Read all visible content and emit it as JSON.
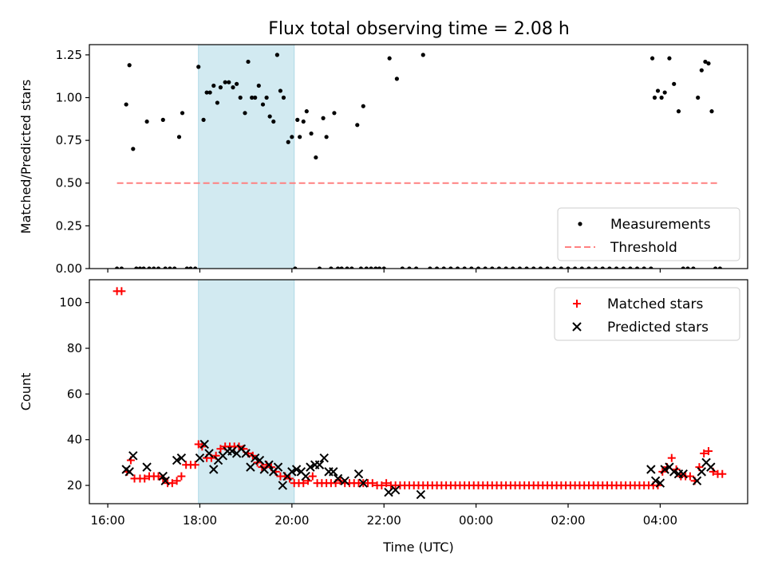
{
  "title": "Flux total observing time = 2.08 h",
  "colors": {
    "measurements": "#000000",
    "threshold": "#ff8080",
    "matched": "#ff0000",
    "predicted": "#000000",
    "shade": "#add8e6"
  },
  "chart_data": [
    {
      "type": "scatter",
      "panel": "top",
      "xlabel": "",
      "ylabel": "Matched/Predicted stars",
      "xlim": [
        15.6,
        29.9
      ],
      "ylim": [
        0.0,
        1.31
      ],
      "yticks": [
        0.0,
        0.25,
        0.5,
        0.75,
        1.0,
        1.25
      ],
      "ytick_labels": [
        "0.00",
        "0.25",
        "0.50",
        "0.75",
        "1.00",
        "1.25"
      ],
      "xticks": [
        16,
        18,
        20,
        22,
        24,
        26,
        28
      ],
      "shaded_region": [
        17.97,
        20.05
      ],
      "legend_position": "lower right",
      "series": [
        {
          "name": "Measurements",
          "marker": "dot",
          "x": [
            16.2,
            16.3,
            16.4,
            16.47,
            16.55,
            16.62,
            16.7,
            16.78,
            16.85,
            16.9,
            17.0,
            17.1,
            17.2,
            17.25,
            17.35,
            17.45,
            17.55,
            17.62,
            17.72,
            17.8,
            17.9,
            17.97,
            18.08,
            18.15,
            18.22,
            18.3,
            18.38,
            18.45,
            18.55,
            18.63,
            18.72,
            18.8,
            18.88,
            18.98,
            19.05,
            19.13,
            19.2,
            19.28,
            19.37,
            19.45,
            19.52,
            19.6,
            19.68,
            19.75,
            19.82,
            19.92,
            20.0,
            20.07,
            20.12,
            20.17,
            20.25,
            20.32,
            20.42,
            20.52,
            20.6,
            20.68,
            20.75,
            20.85,
            20.92,
            21.0,
            21.08,
            21.2,
            21.3,
            21.42,
            21.5,
            21.55,
            21.62,
            21.72,
            21.82,
            21.9,
            22.0,
            22.12,
            22.28,
            22.4,
            22.55,
            22.7,
            22.85,
            23.0,
            23.15,
            23.3,
            23.45,
            23.6,
            23.75,
            23.9,
            24.05,
            24.2,
            24.35,
            24.5,
            24.65,
            24.8,
            24.95,
            25.1,
            25.25,
            25.4,
            25.55,
            25.7,
            25.85,
            26.0,
            26.15,
            26.3,
            26.45,
            26.6,
            26.75,
            26.9,
            27.05,
            27.2,
            27.35,
            27.5,
            27.65,
            27.8,
            27.83,
            27.88,
            27.95,
            28.03,
            28.1,
            28.2,
            28.3,
            28.4,
            28.5,
            28.6,
            28.72,
            28.82,
            28.9,
            28.98,
            29.05,
            29.12,
            29.2,
            29.3
          ],
          "y": [
            0.0,
            0.0,
            0.96,
            1.19,
            0.7,
            0.0,
            0.0,
            0.0,
            0.86,
            0.0,
            0.0,
            0.0,
            0.87,
            0.0,
            0.0,
            0.0,
            0.77,
            0.91,
            0.0,
            0.0,
            0.0,
            1.18,
            0.87,
            1.03,
            1.03,
            1.07,
            0.97,
            1.06,
            1.09,
            1.09,
            1.06,
            1.08,
            1.0,
            0.91,
            1.21,
            1.0,
            1.0,
            1.07,
            0.96,
            1.0,
            0.89,
            0.86,
            1.25,
            1.04,
            1.0,
            0.74,
            0.77,
            0.0,
            0.87,
            0.77,
            0.86,
            0.92,
            0.79,
            0.65,
            0.0,
            0.88,
            0.77,
            0.0,
            0.91,
            0.0,
            0.0,
            0.0,
            0.0,
            0.84,
            0.0,
            0.95,
            0.0,
            0.0,
            0.0,
            0.0,
            0.0,
            1.23,
            1.11,
            0.0,
            0.0,
            0.0,
            1.25,
            0.0,
            0.0,
            0.0,
            0.0,
            0.0,
            0.0,
            0.0,
            0.0,
            0.0,
            0.0,
            0.0,
            0.0,
            0.0,
            0.0,
            0.0,
            0.0,
            0.0,
            0.0,
            0.0,
            0.0,
            0.0,
            0.0,
            0.0,
            0.0,
            0.0,
            0.0,
            0.0,
            0.0,
            0.0,
            0.0,
            0.0,
            0.0,
            0.0,
            1.23,
            1.0,
            1.04,
            1.0,
            1.03,
            1.23,
            1.08,
            0.92,
            0.0,
            0.0,
            0.0,
            1.0,
            1.16,
            1.21,
            1.2,
            0.92,
            0.0,
            0.0
          ]
        },
        {
          "name": "Threshold",
          "marker": "dashed-line",
          "x": [
            16.2,
            29.3
          ],
          "y": [
            0.5,
            0.5
          ]
        }
      ]
    },
    {
      "type": "scatter",
      "panel": "bottom",
      "xlabel": "Time (UTC)",
      "ylabel": "Count",
      "xlim": [
        15.6,
        29.9
      ],
      "ylim": [
        12,
        110
      ],
      "yticks": [
        20,
        40,
        60,
        80,
        100
      ],
      "ytick_labels": [
        "20",
        "40",
        "60",
        "80",
        "100"
      ],
      "xticks": [
        16,
        18,
        20,
        22,
        24,
        26,
        28
      ],
      "xtick_labels": [
        "16:00",
        "18:00",
        "20:00",
        "22:00",
        "00:00",
        "02:00",
        "04:00"
      ],
      "shaded_region": [
        17.97,
        20.05
      ],
      "legend_position": "upper right",
      "series": [
        {
          "name": "Matched stars",
          "marker": "plus",
          "x": [
            16.2,
            16.3,
            16.42,
            16.5,
            16.58,
            16.7,
            16.8,
            16.9,
            17.0,
            17.1,
            17.2,
            17.3,
            17.4,
            17.5,
            17.6,
            17.7,
            17.8,
            17.9,
            17.97,
            18.05,
            18.15,
            18.25,
            18.35,
            18.45,
            18.55,
            18.65,
            18.75,
            18.85,
            18.95,
            19.05,
            19.15,
            19.25,
            19.35,
            19.45,
            19.55,
            19.65,
            19.75,
            19.85,
            19.95,
            20.05,
            20.15,
            20.25,
            20.35,
            20.45,
            20.55,
            20.65,
            20.75,
            20.85,
            20.95,
            21.05,
            21.15,
            21.25,
            21.35,
            21.45,
            21.55,
            21.65,
            21.75,
            21.85,
            21.95,
            22.05,
            22.15,
            22.25,
            22.35,
            22.45,
            22.55,
            22.65,
            22.75,
            22.85,
            22.95,
            23.05,
            23.15,
            23.25,
            23.35,
            23.45,
            23.55,
            23.65,
            23.75,
            23.85,
            23.95,
            24.05,
            24.15,
            24.25,
            24.35,
            24.45,
            24.55,
            24.65,
            24.75,
            24.85,
            24.95,
            25.05,
            25.15,
            25.25,
            25.35,
            25.45,
            25.55,
            25.65,
            25.75,
            25.85,
            25.95,
            26.05,
            26.15,
            26.25,
            26.35,
            26.45,
            26.55,
            26.65,
            26.75,
            26.85,
            26.95,
            27.05,
            27.15,
            27.25,
            27.35,
            27.45,
            27.55,
            27.65,
            27.75,
            27.85,
            27.95,
            28.05,
            28.15,
            28.25,
            28.35,
            28.45,
            28.55,
            28.65,
            28.75,
            28.85,
            28.95,
            29.05,
            29.15,
            29.25,
            29.35
          ],
          "y": [
            105,
            105,
            26,
            31,
            23,
            23,
            23,
            24,
            24,
            24,
            23,
            21,
            21,
            22,
            24,
            29,
            29,
            29,
            38,
            37,
            32,
            32,
            33,
            36,
            37,
            37,
            37,
            37,
            36,
            34,
            33,
            30,
            28,
            29,
            28,
            26,
            24,
            24,
            23,
            21,
            21,
            21,
            22,
            24,
            21,
            21,
            21,
            21,
            21,
            22,
            21,
            21,
            21,
            21,
            21,
            21,
            21,
            20,
            20,
            21,
            20,
            20,
            20,
            20,
            20,
            20,
            20,
            20,
            20,
            20,
            20,
            20,
            20,
            20,
            20,
            20,
            20,
            20,
            20,
            20,
            20,
            20,
            20,
            20,
            20,
            20,
            20,
            20,
            20,
            20,
            20,
            20,
            20,
            20,
            20,
            20,
            20,
            20,
            20,
            20,
            20,
            20,
            20,
            20,
            20,
            20,
            20,
            20,
            20,
            20,
            20,
            20,
            20,
            20,
            20,
            20,
            20,
            20,
            20,
            26,
            28,
            32,
            27,
            24,
            24,
            24,
            22,
            28,
            34,
            35,
            26,
            25,
            25
          ]
        },
        {
          "name": "Predicted stars",
          "marker": "x",
          "x": [
            16.4,
            16.47,
            16.55,
            16.85,
            17.2,
            17.25,
            17.5,
            17.6,
            18.0,
            18.1,
            18.2,
            18.3,
            18.4,
            18.5,
            18.6,
            18.7,
            18.8,
            18.9,
            19.0,
            19.1,
            19.2,
            19.3,
            19.4,
            19.5,
            19.6,
            19.7,
            19.8,
            19.9,
            20.0,
            20.1,
            20.2,
            20.3,
            20.4,
            20.5,
            20.6,
            20.7,
            20.8,
            20.9,
            21.0,
            21.15,
            21.45,
            21.55,
            22.1,
            22.25,
            22.8,
            27.8,
            27.9,
            28.0,
            28.1,
            28.2,
            28.3,
            28.4,
            28.5,
            28.8,
            28.9,
            29.0,
            29.1
          ],
          "y": [
            27,
            26,
            33,
            28,
            24,
            22,
            31,
            32,
            32,
            38,
            34,
            27,
            31,
            33,
            35,
            35,
            34,
            36,
            34,
            28,
            32,
            31,
            27,
            29,
            26,
            28,
            20,
            24,
            26,
            27,
            26,
            24,
            28,
            29,
            29,
            32,
            26,
            26,
            23,
            22,
            25,
            21,
            17,
            18,
            16,
            27,
            22,
            21,
            27,
            28,
            26,
            25,
            25,
            22,
            26,
            30,
            28
          ]
        }
      ]
    }
  ]
}
